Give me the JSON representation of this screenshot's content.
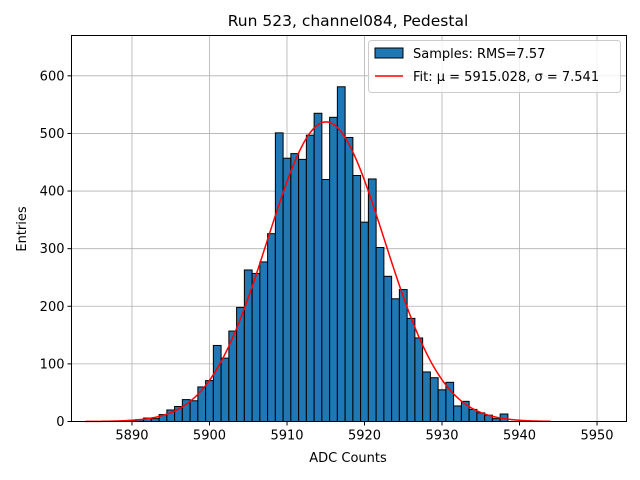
{
  "chart_data": {
    "type": "bar",
    "title": "Run 523, channel084, Pedestal",
    "xlabel": "ADC Counts",
    "ylabel": "Entries",
    "xlim": [
      5882.2,
      5953.8
    ],
    "ylim": [
      0,
      670
    ],
    "xticks": [
      5890,
      5900,
      5910,
      5920,
      5930,
      5940,
      5950
    ],
    "yticks": [
      0,
      100,
      200,
      300,
      400,
      500,
      600
    ],
    "grid": true,
    "legend": {
      "placement": "top-right",
      "entries": [
        {
          "label": "Samples: RMS=7.57",
          "kind": "patch"
        },
        {
          "label": "Fit: μ = 5915.028, σ = 7.541",
          "kind": "line"
        }
      ]
    },
    "bin_width": 1,
    "bins": [
      5890,
      5891,
      5892,
      5893,
      5894,
      5895,
      5896,
      5897,
      5898,
      5899,
      5900,
      5901,
      5902,
      5903,
      5904,
      5905,
      5906,
      5907,
      5908,
      5909,
      5910,
      5911,
      5912,
      5913,
      5914,
      5915,
      5916,
      5917,
      5918,
      5919,
      5920,
      5921,
      5922,
      5923,
      5924,
      5925,
      5926,
      5927,
      5928,
      5929,
      5930,
      5931,
      5932,
      5933,
      5934,
      5935,
      5936,
      5937,
      5938
    ],
    "counts": [
      2,
      3,
      6,
      5,
      12,
      20,
      26,
      38,
      36,
      60,
      71,
      132,
      110,
      157,
      198,
      263,
      257,
      277,
      326,
      501,
      457,
      465,
      455,
      497,
      535,
      420,
      528,
      581,
      493,
      427,
      346,
      421,
      302,
      252,
      213,
      229,
      179,
      145,
      86,
      76,
      55,
      68,
      27,
      35,
      21,
      15,
      11,
      5,
      13
    ],
    "fit": {
      "mu": 5915.028,
      "sigma": 7.541,
      "amplitude": 520,
      "x_range": [
        5884,
        5944
      ]
    },
    "colors": {
      "bar": "#1f77b4",
      "bar_edge": "#000000",
      "fit": "#ff0000",
      "grid": "#b0b0b0"
    }
  }
}
